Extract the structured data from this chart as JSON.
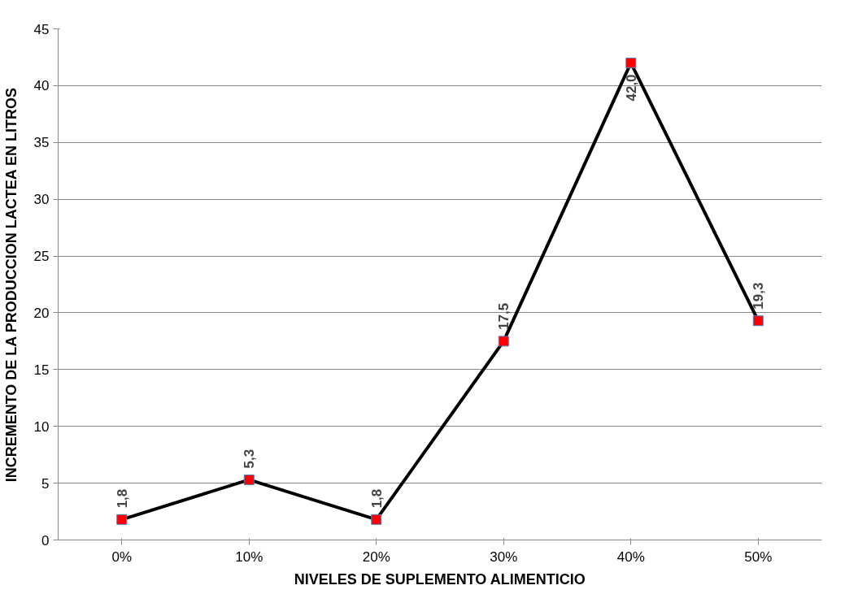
{
  "chart_data": {
    "type": "line",
    "xlabel": "NIVELES DE SUPLEMENTO ALIMENTICIO",
    "ylabel": "INCREMENTO DE LA PRODUCCION LACTEA EN LITROS",
    "categories": [
      "0%",
      "10%",
      "20%",
      "30%",
      "40%",
      "50%"
    ],
    "series": [
      {
        "color": "#000000",
        "values": [
          1.8,
          5.3,
          1.8,
          17.5,
          42.0,
          19.3
        ],
        "colors": [
          "#ff0000",
          "#ff0000",
          "#ff0000",
          "#ff0000",
          "#ff0000",
          "#ff0000"
        ],
        "value_labels": [
          "1,8",
          "5,3",
          "1,8",
          "17,5",
          "42,0",
          "19,3"
        ]
      }
    ],
    "ylim": [
      0,
      45
    ],
    "yticks": [
      0,
      5,
      10,
      15,
      20,
      25,
      30,
      35,
      40,
      45
    ],
    "grid": "y",
    "marker": "square",
    "line_style": "solid"
  }
}
